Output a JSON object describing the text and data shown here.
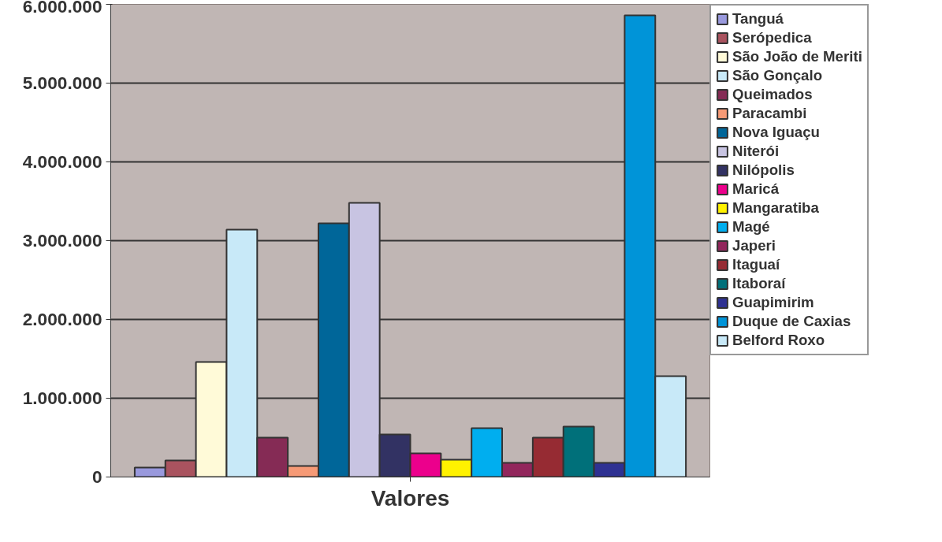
{
  "chart_data": {
    "type": "bar",
    "categories": [
      "Valores"
    ],
    "ylim": [
      0,
      6000000
    ],
    "yticks": [
      {
        "value": 0,
        "label": "0"
      },
      {
        "value": 1000000,
        "label": "1.000.000"
      },
      {
        "value": 2000000,
        "label": "2.000.000"
      },
      {
        "value": 3000000,
        "label": "3.000.000"
      },
      {
        "value": 4000000,
        "label": "4.000.000"
      },
      {
        "value": 5000000,
        "label": "5.000.000"
      },
      {
        "value": 6000000,
        "label": "6.000.000"
      }
    ],
    "grid": "y",
    "legend": "right",
    "series": [
      {
        "name": "Tanguá",
        "color": "#9999dd",
        "values": [
          120000
        ]
      },
      {
        "name": "Serópedica",
        "color": "#a9535f",
        "values": [
          210000
        ]
      },
      {
        "name": "São João de Meriti",
        "color": "#fffad8",
        "values": [
          1460000
        ]
      },
      {
        "name": "São Gonçalo",
        "color": "#c8e9f8",
        "values": [
          3140000
        ]
      },
      {
        "name": "Queimados",
        "color": "#852b55",
        "values": [
          500000
        ]
      },
      {
        "name": "Paracambi",
        "color": "#f69a76",
        "values": [
          140000
        ]
      },
      {
        "name": "Nova Iguaçu",
        "color": "#006699",
        "values": [
          3220000
        ]
      },
      {
        "name": "Niterói",
        "color": "#c8c4e2",
        "values": [
          3480000
        ]
      },
      {
        "name": "Nilópolis",
        "color": "#323263",
        "values": [
          540000
        ]
      },
      {
        "name": "Maricá",
        "color": "#ec008c",
        "values": [
          300000
        ]
      },
      {
        "name": "Mangaratiba",
        "color": "#fff200",
        "values": [
          220000
        ]
      },
      {
        "name": "Magé",
        "color": "#00aeef",
        "values": [
          620000
        ]
      },
      {
        "name": "Japeri",
        "color": "#92265c",
        "values": [
          180000
        ]
      },
      {
        "name": "Itaguaí",
        "color": "#962b33",
        "values": [
          500000
        ]
      },
      {
        "name": "Itaboraí",
        "color": "#00707a",
        "values": [
          640000
        ]
      },
      {
        "name": "Guapimirim",
        "color": "#2e3192",
        "values": [
          180000
        ]
      },
      {
        "name": "Duque de Caxias",
        "color": "#0094d8",
        "values": [
          5860000
        ]
      },
      {
        "name": "Belford Roxo",
        "color": "#c8e9f8",
        "values": [
          1280000
        ]
      }
    ]
  }
}
